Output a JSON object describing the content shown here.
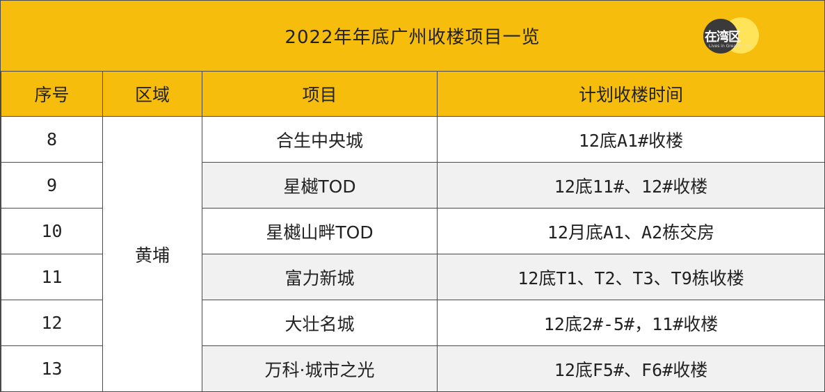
{
  "title": "2022年年底广州收楼项目一览",
  "logo": {
    "text": "在湾区",
    "subtext": "Lives in Greater Bay"
  },
  "headers": [
    "序号",
    "区域",
    "项目",
    "计划收楼时间"
  ],
  "region": "黄埔",
  "rows": [
    {
      "no": "8",
      "project": "合生中央城",
      "schedule": "12底A1#收楼"
    },
    {
      "no": "9",
      "project": "星樾TOD",
      "schedule": "12底11#、12#收楼"
    },
    {
      "no": "10",
      "project": "星樾山畔TOD",
      "schedule": "12月底A1、A2栋交房"
    },
    {
      "no": "11",
      "project": "富力新城",
      "schedule": "12底T1、T2、T3、T9栋收楼"
    },
    {
      "no": "12",
      "project": "大壮名城",
      "schedule": "12底2#-5#，11#收楼"
    },
    {
      "no": "13",
      "project": "万科·城市之光",
      "schedule": "12底F5#、F6#收楼"
    }
  ],
  "colors": {
    "header_bg": "#f7bd0d",
    "row_alt_bg": "#f1f1f1",
    "border": "#4a4a4a"
  }
}
